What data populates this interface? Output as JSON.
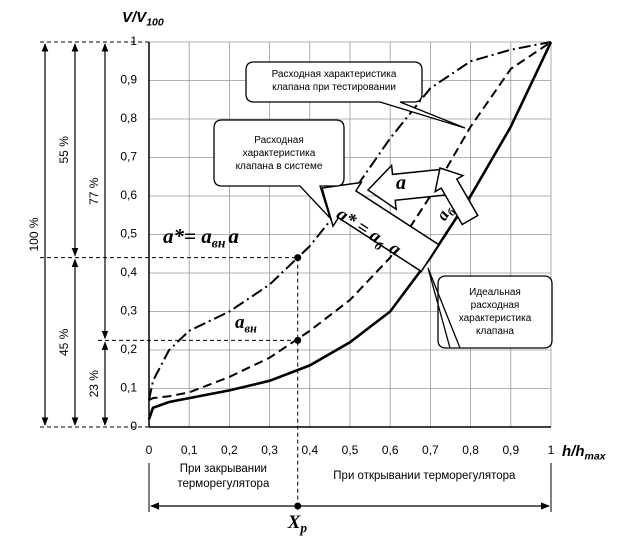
{
  "chart_data": {
    "type": "line",
    "y_label": {
      "main": "V/V",
      "sub": "100"
    },
    "x_label": {
      "main": "h/h",
      "sub": "max"
    },
    "x": [
      0,
      0.01,
      0.05,
      0.1,
      0.2,
      0.3,
      0.4,
      0.5,
      0.6,
      0.7,
      0.8,
      0.9,
      1
    ],
    "series": [
      {
        "name": "Расходная характеристика\nклапана при тестировании",
        "color": "#000000",
        "style": "dashdot",
        "values": [
          0.07,
          0.12,
          0.2,
          0.25,
          0.3,
          0.37,
          0.47,
          0.6,
          0.75,
          0.88,
          0.95,
          0.98,
          1
        ]
      },
      {
        "name": "Расходная\nхарактеристика\nклапана в системе",
        "color": "#000000",
        "style": "dashed",
        "values": [
          0.07,
          0.075,
          0.08,
          0.09,
          0.13,
          0.18,
          0.25,
          0.33,
          0.44,
          0.6,
          0.78,
          0.93,
          1
        ]
      },
      {
        "name": "Идеальная\nрасходная\nхарактеристика\nклапана",
        "color": "#000000",
        "style": "solid",
        "values": [
          0.02,
          0.05,
          0.065,
          0.075,
          0.095,
          0.12,
          0.16,
          0.22,
          0.3,
          0.44,
          0.6,
          0.78,
          1
        ]
      }
    ],
    "xlim": [
      0,
      1
    ],
    "ylim": [
      0,
      1
    ],
    "xticks": [
      0,
      {
        "value": 0.1,
        "label": "0,1"
      },
      {
        "value": 0.2,
        "label": "0,2"
      },
      {
        "value": 0.3,
        "label": "0,3"
      },
      {
        "value": 0.4,
        "label": "0,4"
      },
      {
        "value": 0.5,
        "label": "0,5"
      },
      {
        "value": 0.6,
        "label": "0,6"
      },
      {
        "value": 0.7,
        "label": "0,7"
      },
      {
        "value": 0.8,
        "label": "0,8"
      },
      {
        "value": 0.9,
        "label": "0,9"
      },
      1
    ],
    "yticks": [
      0,
      {
        "value": 0.1,
        "label": "0,1"
      },
      {
        "value": 0.2,
        "label": "0,2"
      },
      {
        "value": 0.3,
        "label": "0,3"
      },
      {
        "value": 0.4,
        "label": "0,4"
      },
      {
        "value": 0.5,
        "label": "0,5"
      },
      {
        "value": 0.6,
        "label": "0,6"
      },
      {
        "value": 0.7,
        "label": "0,7"
      },
      {
        "value": 0.8,
        "label": "0,8"
      },
      {
        "value": 0.9,
        "label": "0,9"
      },
      1
    ],
    "grid": true,
    "reference_points": [
      {
        "x": 0.37,
        "y": 0.44
      },
      {
        "x": 0.37,
        "y": 0.225
      }
    ],
    "dimension_labels": [
      "100 %",
      "55 %",
      "45 %",
      "77 %",
      "23 %"
    ],
    "formula": [
      {
        "text": "a*= a",
        "sub": false
      },
      {
        "text": "вн",
        "sub": true
      },
      {
        "text": "a",
        "sub": false
      }
    ],
    "formula_small": [
      {
        "text": "a",
        "sub": false
      },
      {
        "text": "вн",
        "sub": true
      }
    ],
    "arrow_labels": [
      [
        {
          "text": "a",
          "sub": false
        }
      ],
      [
        {
          "text": "a",
          "sub": false
        },
        {
          "text": "б",
          "sub": true
        }
      ],
      [
        {
          "text": "a* = a",
          "sub": false
        },
        {
          "text": "б",
          "sub": true
        },
        {
          "text": " a",
          "sub": false
        }
      ]
    ],
    "regions": [
      "При закрывании\nтерморегулятора",
      "При открывании терморегулятора"
    ],
    "xp": {
      "main": "X",
      "sub": "p"
    }
  }
}
